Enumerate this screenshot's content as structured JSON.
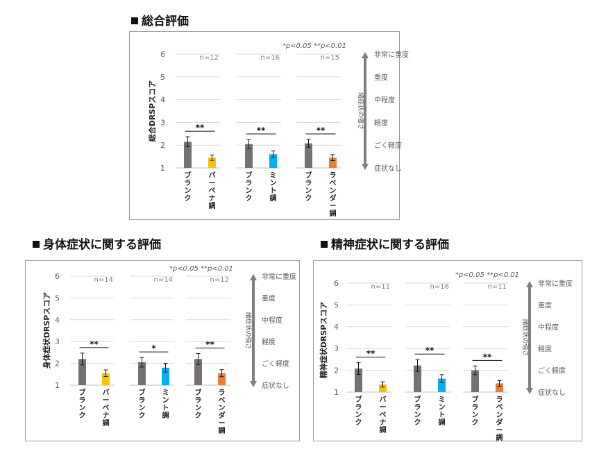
{
  "colors": {
    "blank": "#767171",
    "verbena": "#FFC000",
    "mint": "#00B0F0",
    "lavender": "#ED7D31",
    "text": "#595959",
    "line": "#222222",
    "arrow": "#7f7f7f"
  },
  "sections": [
    {
      "title": "総合評価"
    },
    {
      "title": "身体症状に関する評価"
    },
    {
      "title": "精神症状に関する評価"
    }
  ],
  "chart_data": [
    {
      "type": "bar",
      "title": "総合評価",
      "ylabel": "総合DRSPスコア",
      "ylim": [
        1,
        6
      ],
      "yticks": [
        "1",
        "2",
        "3",
        "4",
        "5",
        "6"
      ],
      "note": "*p<0.05 **p<0.01",
      "severity_label": "諸症状の強さ",
      "severity_levels": [
        "非常に重度",
        "重度",
        "中程度",
        "軽度",
        "ごく軽度",
        "症状なし"
      ],
      "groups": [
        {
          "n": "n=12",
          "sig": "**",
          "bars": [
            {
              "label": "ブランク",
              "value": 2.15,
              "err": 0.22,
              "color_key": "blank"
            },
            {
              "label": "バーベナ調",
              "value": 1.45,
              "err": 0.12,
              "color_key": "verbena"
            }
          ]
        },
        {
          "n": "n=16",
          "sig": "**",
          "bars": [
            {
              "label": "ブランク",
              "value": 2.05,
              "err": 0.2,
              "color_key": "blank"
            },
            {
              "label": "ミント調",
              "value": 1.6,
              "err": 0.15,
              "color_key": "mint"
            }
          ]
        },
        {
          "n": "n=15",
          "sig": "**",
          "bars": [
            {
              "label": "ブランク",
              "value": 2.08,
              "err": 0.17,
              "color_key": "blank"
            },
            {
              "label": "ラベンダー調",
              "value": 1.45,
              "err": 0.13,
              "color_key": "lavender"
            }
          ]
        }
      ]
    },
    {
      "type": "bar",
      "title": "身体症状に関する評価",
      "ylabel": "身体症状DRSPスコア",
      "ylim": [
        1,
        6
      ],
      "yticks": [
        "1",
        "2",
        "3",
        "4",
        "5",
        "6"
      ],
      "note": "*p<0.05 **p<0.01",
      "severity_label": "諸症状の強さ",
      "severity_levels": [
        "非常に重度",
        "重度",
        "中程度",
        "軽度",
        "ごく軽度",
        "症状なし"
      ],
      "groups": [
        {
          "n": "n=14",
          "sig": "**",
          "bars": [
            {
              "label": "ブランク",
              "value": 2.2,
              "err": 0.27,
              "color_key": "blank"
            },
            {
              "label": "バーベナ調",
              "value": 1.55,
              "err": 0.15,
              "color_key": "verbena"
            }
          ]
        },
        {
          "n": "n=14",
          "sig": "*",
          "bars": [
            {
              "label": "ブランク",
              "value": 2.05,
              "err": 0.22,
              "color_key": "blank"
            },
            {
              "label": "ミント調",
              "value": 1.8,
              "err": 0.2,
              "color_key": "mint"
            }
          ]
        },
        {
          "n": "n=12",
          "sig": "**",
          "bars": [
            {
              "label": "ブランク",
              "value": 2.2,
              "err": 0.25,
              "color_key": "blank"
            },
            {
              "label": "ラベンダー調",
              "value": 1.55,
              "err": 0.16,
              "color_key": "lavender"
            }
          ]
        }
      ]
    },
    {
      "type": "bar",
      "title": "精神症状に関する評価",
      "ylabel": "精神症状DRSPスコア",
      "ylim": [
        1,
        6
      ],
      "yticks": [
        "1",
        "2",
        "3",
        "4",
        "5",
        "6"
      ],
      "note": "*p<0.05 **p<0.01",
      "severity_label": "諸症状の強さ",
      "severity_levels": [
        "非常に重度",
        "重度",
        "中程度",
        "軽度",
        "ごく軽度",
        "症状なし"
      ],
      "groups": [
        {
          "n": "n=11",
          "sig": "**",
          "bars": [
            {
              "label": "ブランク",
              "value": 2.08,
              "err": 0.27,
              "color_key": "blank"
            },
            {
              "label": "バーベナ調",
              "value": 1.35,
              "err": 0.12,
              "color_key": "verbena"
            }
          ]
        },
        {
          "n": "n=16",
          "sig": "**",
          "bars": [
            {
              "label": "ブランク",
              "value": 2.22,
              "err": 0.27,
              "color_key": "blank"
            },
            {
              "label": "ミント調",
              "value": 1.62,
              "err": 0.18,
              "color_key": "mint"
            }
          ]
        },
        {
          "n": "n=11",
          "sig": "**",
          "bars": [
            {
              "label": "ブランク",
              "value": 2.0,
              "err": 0.2,
              "color_key": "blank"
            },
            {
              "label": "ラベンダー調",
              "value": 1.4,
              "err": 0.13,
              "color_key": "lavender"
            }
          ]
        }
      ]
    }
  ]
}
